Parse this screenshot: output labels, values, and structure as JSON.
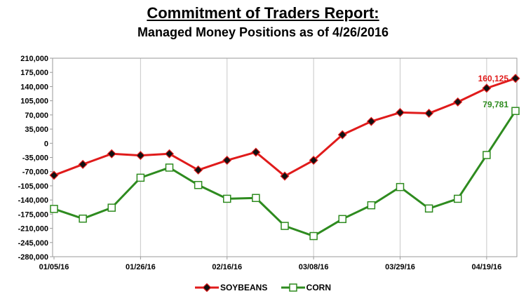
{
  "chart_data": {
    "type": "line",
    "title": "Commitment of Traders Report:",
    "subtitle": "Managed Money Positions as of 4/26/2016",
    "x": [
      "01/05/16",
      "01/12/16",
      "01/19/16",
      "01/26/16",
      "02/02/16",
      "02/09/16",
      "02/16/16",
      "02/23/16",
      "03/01/16",
      "03/08/16",
      "03/15/16",
      "03/22/16",
      "03/29/16",
      "04/05/16",
      "04/12/16",
      "04/19/16",
      "04/26/16"
    ],
    "x_tick_labels": [
      "01/05/16",
      "01/26/16",
      "02/16/16",
      "03/08/16",
      "03/29/16",
      "04/19/16"
    ],
    "y_tick_labels": [
      "210,000",
      "175,000",
      "140,000",
      "105,000",
      "70,000",
      "35,000",
      "0",
      "-35,000",
      "-70,000",
      "-105,000",
      "-140,000",
      "-175,000",
      "-210,000",
      "-245,000",
      "-280,000"
    ],
    "ylim": [
      -280000,
      210000
    ],
    "grid": "vertical",
    "legend_position": "bottom",
    "series": [
      {
        "name": "SOYBEANS",
        "color": "#e01b1b",
        "marker": "diamond",
        "values": [
          -79000,
          -52000,
          -26000,
          -30000,
          -26000,
          -66000,
          -42000,
          -22000,
          -81000,
          -42000,
          21000,
          54000,
          76000,
          74000,
          102000,
          136000,
          160125
        ],
        "end_label": "160,125"
      },
      {
        "name": "CORN",
        "color": "#2e8b1f",
        "marker": "square",
        "values": [
          -162000,
          -186000,
          -159000,
          -85000,
          -60000,
          -103000,
          -137000,
          -135000,
          -204000,
          -229000,
          -187000,
          -153000,
          -108000,
          -161000,
          -137000,
          -29000,
          79781
        ],
        "end_label": "79,781"
      }
    ]
  }
}
